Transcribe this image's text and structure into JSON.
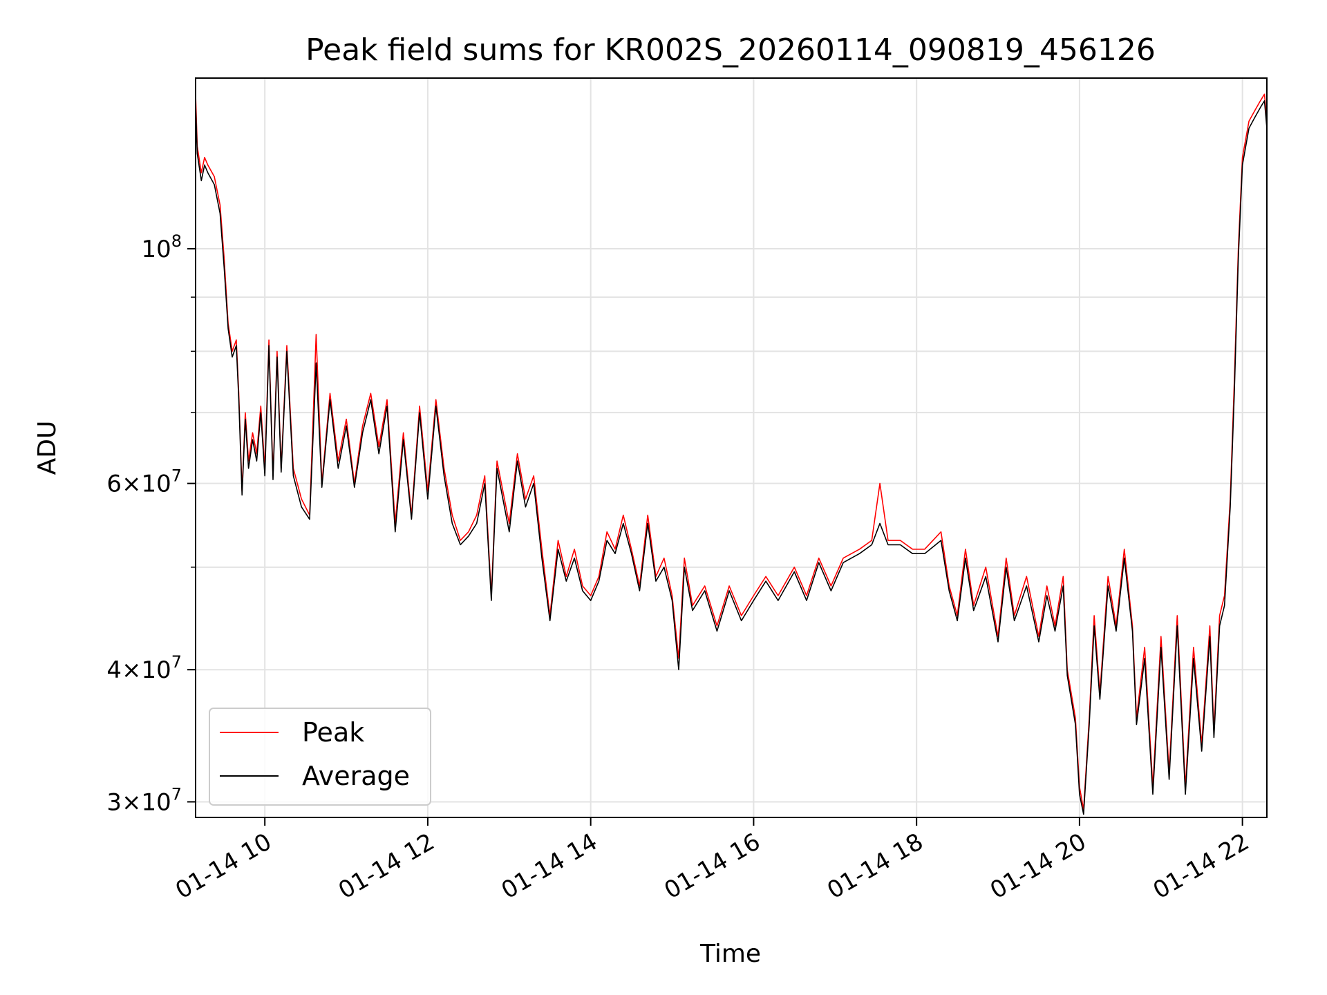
{
  "chart_data": {
    "type": "line",
    "title": "Peak field sums for KR002S_20260114_090819_456126",
    "xlabel": "Time",
    "ylabel": "ADU",
    "x_unit": "hour of day (2026-01-14)",
    "xlim": [
      9.15,
      22.3
    ],
    "ylim": [
      29000000,
      145000000
    ],
    "yscale": "log",
    "grid": true,
    "legend_position": "lower-left",
    "x_ticks": [
      {
        "value": 10,
        "label": "01-14 10"
      },
      {
        "value": 12,
        "label": "01-14 12"
      },
      {
        "value": 14,
        "label": "01-14 14"
      },
      {
        "value": 16,
        "label": "01-14 16"
      },
      {
        "value": 18,
        "label": "01-14 18"
      },
      {
        "value": 20,
        "label": "01-14 20"
      },
      {
        "value": 22,
        "label": "01-14 22"
      }
    ],
    "y_ticks": [
      {
        "value": 30000000,
        "mantissa": "3",
        "base": "10",
        "exp": "7"
      },
      {
        "value": 40000000,
        "mantissa": "4",
        "base": "10",
        "exp": "7"
      },
      {
        "value": 60000000,
        "mantissa": "6",
        "base": "10",
        "exp": "7"
      },
      {
        "value": 100000000,
        "mantissa": "",
        "base": "10",
        "exp": "8"
      }
    ],
    "y_minor_ticks": [
      50000000,
      70000000,
      80000000,
      90000000
    ],
    "series": [
      {
        "name": "Peak",
        "color": "#ff0000",
        "points": [
          [
            9.15,
            140000000
          ],
          [
            9.17,
            125000000
          ],
          [
            9.22,
            118000000
          ],
          [
            9.26,
            122000000
          ],
          [
            9.3,
            120000000
          ],
          [
            9.38,
            117000000
          ],
          [
            9.45,
            110000000
          ],
          [
            9.5,
            98000000
          ],
          [
            9.55,
            85000000
          ],
          [
            9.6,
            80000000
          ],
          [
            9.65,
            82000000
          ],
          [
            9.68,
            73000000
          ],
          [
            9.72,
            59000000
          ],
          [
            9.76,
            70000000
          ],
          [
            9.8,
            63000000
          ],
          [
            9.85,
            67000000
          ],
          [
            9.9,
            64000000
          ],
          [
            9.95,
            71000000
          ],
          [
            10.0,
            62000000
          ],
          [
            10.05,
            82000000
          ],
          [
            10.1,
            61000000
          ],
          [
            10.15,
            80000000
          ],
          [
            10.2,
            62000000
          ],
          [
            10.27,
            81000000
          ],
          [
            10.35,
            62000000
          ],
          [
            10.45,
            58000000
          ],
          [
            10.55,
            56000000
          ],
          [
            10.63,
            83000000
          ],
          [
            10.7,
            60000000
          ],
          [
            10.8,
            73000000
          ],
          [
            10.9,
            63000000
          ],
          [
            11.0,
            69000000
          ],
          [
            11.1,
            60000000
          ],
          [
            11.2,
            68000000
          ],
          [
            11.3,
            73000000
          ],
          [
            11.4,
            65000000
          ],
          [
            11.5,
            72000000
          ],
          [
            11.6,
            55000000
          ],
          [
            11.7,
            67000000
          ],
          [
            11.8,
            56000000
          ],
          [
            11.9,
            71000000
          ],
          [
            12.0,
            59000000
          ],
          [
            12.1,
            72000000
          ],
          [
            12.2,
            62000000
          ],
          [
            12.3,
            56000000
          ],
          [
            12.4,
            53000000
          ],
          [
            12.5,
            54000000
          ],
          [
            12.6,
            56000000
          ],
          [
            12.7,
            61000000
          ],
          [
            12.78,
            47000000
          ],
          [
            12.85,
            63000000
          ],
          [
            13.0,
            55000000
          ],
          [
            13.1,
            64000000
          ],
          [
            13.2,
            58000000
          ],
          [
            13.3,
            61000000
          ],
          [
            13.4,
            52000000
          ],
          [
            13.5,
            45000000
          ],
          [
            13.6,
            53000000
          ],
          [
            13.7,
            49000000
          ],
          [
            13.8,
            52000000
          ],
          [
            13.9,
            48000000
          ],
          [
            14.0,
            47000000
          ],
          [
            14.1,
            49000000
          ],
          [
            14.2,
            54000000
          ],
          [
            14.3,
            52000000
          ],
          [
            14.4,
            56000000
          ],
          [
            14.5,
            52000000
          ],
          [
            14.6,
            48000000
          ],
          [
            14.7,
            56000000
          ],
          [
            14.8,
            49000000
          ],
          [
            14.9,
            51000000
          ],
          [
            15.0,
            47000000
          ],
          [
            15.08,
            41000000
          ],
          [
            15.15,
            51000000
          ],
          [
            15.25,
            46000000
          ],
          [
            15.4,
            48000000
          ],
          [
            15.55,
            44000000
          ],
          [
            15.7,
            48000000
          ],
          [
            15.85,
            45000000
          ],
          [
            16.0,
            47000000
          ],
          [
            16.15,
            49000000
          ],
          [
            16.3,
            47000000
          ],
          [
            16.5,
            50000000
          ],
          [
            16.65,
            47000000
          ],
          [
            16.8,
            51000000
          ],
          [
            16.95,
            48000000
          ],
          [
            17.1,
            51000000
          ],
          [
            17.3,
            52000000
          ],
          [
            17.45,
            53000000
          ],
          [
            17.55,
            60000000
          ],
          [
            17.65,
            53000000
          ],
          [
            17.8,
            53000000
          ],
          [
            17.95,
            52000000
          ],
          [
            18.1,
            52000000
          ],
          [
            18.3,
            54000000
          ],
          [
            18.4,
            48000000
          ],
          [
            18.5,
            45000000
          ],
          [
            18.6,
            52000000
          ],
          [
            18.7,
            46000000
          ],
          [
            18.85,
            50000000
          ],
          [
            19.0,
            43000000
          ],
          [
            19.1,
            51000000
          ],
          [
            19.2,
            45000000
          ],
          [
            19.35,
            49000000
          ],
          [
            19.5,
            43000000
          ],
          [
            19.6,
            48000000
          ],
          [
            19.7,
            44000000
          ],
          [
            19.8,
            49000000
          ],
          [
            19.85,
            40000000
          ],
          [
            19.95,
            36000000
          ],
          [
            20.0,
            31000000
          ],
          [
            20.05,
            29500000
          ],
          [
            20.12,
            36000000
          ],
          [
            20.18,
            45000000
          ],
          [
            20.25,
            38000000
          ],
          [
            20.35,
            49000000
          ],
          [
            20.45,
            44000000
          ],
          [
            20.55,
            52000000
          ],
          [
            20.65,
            44000000
          ],
          [
            20.7,
            36000000
          ],
          [
            20.8,
            42000000
          ],
          [
            20.9,
            31000000
          ],
          [
            21.0,
            43000000
          ],
          [
            21.1,
            32000000
          ],
          [
            21.2,
            45000000
          ],
          [
            21.3,
            31000000
          ],
          [
            21.4,
            42000000
          ],
          [
            21.5,
            34000000
          ],
          [
            21.6,
            44000000
          ],
          [
            21.65,
            35000000
          ],
          [
            21.72,
            45000000
          ],
          [
            21.78,
            47000000
          ],
          [
            21.85,
            58000000
          ],
          [
            21.9,
            75000000
          ],
          [
            21.95,
            100000000
          ],
          [
            22.0,
            122000000
          ],
          [
            22.08,
            132000000
          ],
          [
            22.15,
            135000000
          ],
          [
            22.22,
            138000000
          ],
          [
            22.27,
            140000000
          ],
          [
            22.3,
            132000000
          ]
        ]
      },
      {
        "name": "Average",
        "color": "#000000",
        "points": [
          [
            9.15,
            137000000
          ],
          [
            9.17,
            123000000
          ],
          [
            9.22,
            116000000
          ],
          [
            9.26,
            120000000
          ],
          [
            9.3,
            118000000
          ],
          [
            9.38,
            115000000
          ],
          [
            9.45,
            108000000
          ],
          [
            9.5,
            96000000
          ],
          [
            9.55,
            84000000
          ],
          [
            9.6,
            79000000
          ],
          [
            9.65,
            81000000
          ],
          [
            9.68,
            72000000
          ],
          [
            9.72,
            58500000
          ],
          [
            9.76,
            69000000
          ],
          [
            9.8,
            62000000
          ],
          [
            9.85,
            66000000
          ],
          [
            9.9,
            63000000
          ],
          [
            9.95,
            70000000
          ],
          [
            10.0,
            61000000
          ],
          [
            10.05,
            81000000
          ],
          [
            10.1,
            60500000
          ],
          [
            10.15,
            79000000
          ],
          [
            10.2,
            61500000
          ],
          [
            10.27,
            80000000
          ],
          [
            10.35,
            61000000
          ],
          [
            10.45,
            57000000
          ],
          [
            10.55,
            55500000
          ],
          [
            10.63,
            78000000
          ],
          [
            10.7,
            59500000
          ],
          [
            10.8,
            72000000
          ],
          [
            10.9,
            62000000
          ],
          [
            11.0,
            68000000
          ],
          [
            11.1,
            59500000
          ],
          [
            11.2,
            67000000
          ],
          [
            11.3,
            72000000
          ],
          [
            11.4,
            64000000
          ],
          [
            11.5,
            71000000
          ],
          [
            11.6,
            54000000
          ],
          [
            11.7,
            66000000
          ],
          [
            11.8,
            55500000
          ],
          [
            11.9,
            70000000
          ],
          [
            12.0,
            58000000
          ],
          [
            12.1,
            71000000
          ],
          [
            12.2,
            61000000
          ],
          [
            12.3,
            55000000
          ],
          [
            12.4,
            52500000
          ],
          [
            12.5,
            53500000
          ],
          [
            12.6,
            55000000
          ],
          [
            12.7,
            60000000
          ],
          [
            12.78,
            46500000
          ],
          [
            12.85,
            62000000
          ],
          [
            13.0,
            54000000
          ],
          [
            13.1,
            63000000
          ],
          [
            13.2,
            57000000
          ],
          [
            13.3,
            60000000
          ],
          [
            13.4,
            51000000
          ],
          [
            13.5,
            44500000
          ],
          [
            13.6,
            52000000
          ],
          [
            13.7,
            48500000
          ],
          [
            13.8,
            51000000
          ],
          [
            13.9,
            47500000
          ],
          [
            14.0,
            46500000
          ],
          [
            14.1,
            48500000
          ],
          [
            14.2,
            53000000
          ],
          [
            14.3,
            51500000
          ],
          [
            14.4,
            55000000
          ],
          [
            14.5,
            51500000
          ],
          [
            14.6,
            47500000
          ],
          [
            14.7,
            55000000
          ],
          [
            14.8,
            48500000
          ],
          [
            14.9,
            50000000
          ],
          [
            15.0,
            46500000
          ],
          [
            15.08,
            40000000
          ],
          [
            15.15,
            50000000
          ],
          [
            15.25,
            45500000
          ],
          [
            15.4,
            47500000
          ],
          [
            15.55,
            43500000
          ],
          [
            15.7,
            47500000
          ],
          [
            15.85,
            44500000
          ],
          [
            16.0,
            46500000
          ],
          [
            16.15,
            48500000
          ],
          [
            16.3,
            46500000
          ],
          [
            16.5,
            49500000
          ],
          [
            16.65,
            46500000
          ],
          [
            16.8,
            50500000
          ],
          [
            16.95,
            47500000
          ],
          [
            17.1,
            50500000
          ],
          [
            17.3,
            51500000
          ],
          [
            17.45,
            52500000
          ],
          [
            17.55,
            55000000
          ],
          [
            17.65,
            52500000
          ],
          [
            17.8,
            52500000
          ],
          [
            17.95,
            51500000
          ],
          [
            18.1,
            51500000
          ],
          [
            18.3,
            53000000
          ],
          [
            18.4,
            47500000
          ],
          [
            18.5,
            44500000
          ],
          [
            18.6,
            51000000
          ],
          [
            18.7,
            45500000
          ],
          [
            18.85,
            49000000
          ],
          [
            19.0,
            42500000
          ],
          [
            19.1,
            50000000
          ],
          [
            19.2,
            44500000
          ],
          [
            19.35,
            48000000
          ],
          [
            19.5,
            42500000
          ],
          [
            19.6,
            47000000
          ],
          [
            19.7,
            43500000
          ],
          [
            19.8,
            48000000
          ],
          [
            19.85,
            39500000
          ],
          [
            19.95,
            35500000
          ],
          [
            20.0,
            30500000
          ],
          [
            20.05,
            29200000
          ],
          [
            20.12,
            35500000
          ],
          [
            20.18,
            44000000
          ],
          [
            20.25,
            37500000
          ],
          [
            20.35,
            48000000
          ],
          [
            20.45,
            43500000
          ],
          [
            20.55,
            51000000
          ],
          [
            20.65,
            43500000
          ],
          [
            20.7,
            35500000
          ],
          [
            20.8,
            41000000
          ],
          [
            20.9,
            30500000
          ],
          [
            21.0,
            42000000
          ],
          [
            21.1,
            31500000
          ],
          [
            21.2,
            44000000
          ],
          [
            21.3,
            30500000
          ],
          [
            21.4,
            41000000
          ],
          [
            21.5,
            33500000
          ],
          [
            21.6,
            43000000
          ],
          [
            21.65,
            34500000
          ],
          [
            21.72,
            44000000
          ],
          [
            21.78,
            46000000
          ],
          [
            21.85,
            57000000
          ],
          [
            21.9,
            73000000
          ],
          [
            21.95,
            98000000
          ],
          [
            22.0,
            120000000
          ],
          [
            22.08,
            130000000
          ],
          [
            22.15,
            133000000
          ],
          [
            22.22,
            136000000
          ],
          [
            22.27,
            138000000
          ],
          [
            22.3,
            130000000
          ]
        ]
      }
    ]
  }
}
